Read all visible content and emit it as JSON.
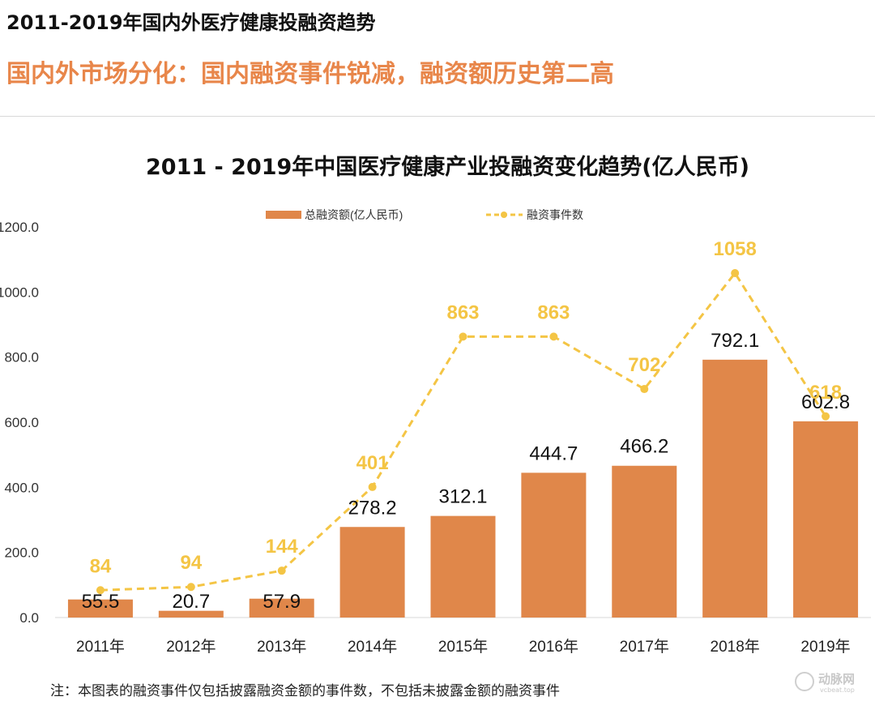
{
  "header": {
    "heading": "2011-2019年国内外医疗健康投融资趋势",
    "subheading": "国内外市场分化：国内融资事件锐减，融资额历史第二高"
  },
  "colors": {
    "bar": "#E0874A",
    "line": "#F4C545",
    "event_label": "#F4C545",
    "subheading": "#E8864A",
    "axis": "#d9d9d9"
  },
  "chart_data": {
    "type": "bar",
    "title": "2011 - 2019年中国医疗健康产业投融资变化趋势(亿人民币)",
    "categories": [
      "2011年",
      "2012年",
      "2013年",
      "2014年",
      "2015年",
      "2016年",
      "2017年",
      "2018年",
      "2019年"
    ],
    "series": [
      {
        "name": "总融资额(亿人民币)",
        "kind": "bar",
        "values": [
          55.5,
          20.7,
          57.9,
          278.2,
          312.1,
          444.7,
          466.2,
          792.1,
          602.8
        ],
        "labels": [
          "55.5",
          "20.7",
          "57.9",
          "278.2",
          "312.1",
          "444.7",
          "466.2",
          "792.1",
          "602.8"
        ]
      },
      {
        "name": "融资事件数",
        "kind": "line",
        "values": [
          84,
          94,
          144,
          401,
          863,
          863,
          702,
          1058,
          618
        ],
        "labels": [
          "84",
          "94",
          "144",
          "401",
          "863",
          "863",
          "702",
          "1058",
          "618"
        ]
      }
    ],
    "yaxis": {
      "min": 0,
      "max": 1200,
      "ticks": [
        0,
        200,
        400,
        600,
        800,
        1000,
        1200
      ],
      "tick_labels": [
        "0.0",
        "200.0",
        "400.0",
        "600.0",
        "800.0",
        "1000.0",
        "1200.0"
      ]
    },
    "legend_position": "top-center",
    "grid": false
  },
  "footnote": "注：本图表的融资事件仅包括披露融资金额的事件数，不包括未披露金额的融资事件",
  "watermark": {
    "logo_text": "动脉网",
    "url": "vcbeat.top"
  }
}
